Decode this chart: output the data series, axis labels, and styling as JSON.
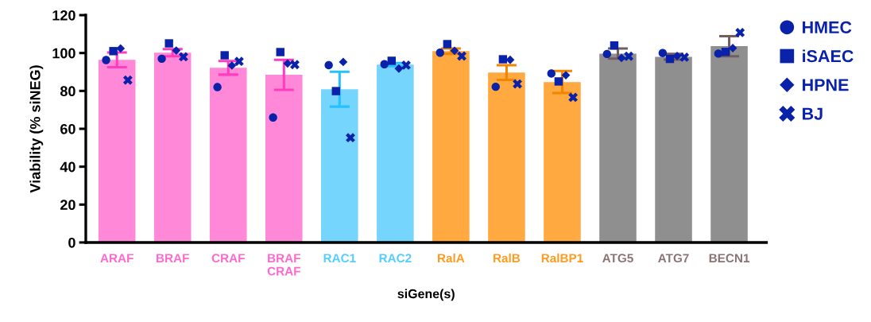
{
  "chart_data": {
    "type": "bar",
    "ylabel": "Viability (% siNEG)",
    "xlabel": "siGene(s)",
    "categories": [
      "ARAF",
      "BRAF",
      "CRAF",
      "BRAF\nCRAF",
      "RAC1",
      "RAC2",
      "RalA",
      "RalB",
      "RalBP1",
      "ATG5",
      "ATG7",
      "BECN1"
    ],
    "ylim": [
      0,
      120
    ],
    "yticks": [
      0,
      20,
      40,
      60,
      80,
      100,
      120
    ],
    "grid": false,
    "legend": "top right",
    "series": [
      {
        "colors": [
          "#ff88d8",
          "#ff88d8",
          "#ff88d8",
          "#ff88d8",
          "#75d5fd",
          "#75d5fd",
          "#ffa940",
          "#ffa940",
          "#ffa940",
          "#8f8f8f",
          "#8f8f8f",
          "#8f8f8f"
        ],
        "values": [
          96.4,
          100.2,
          92.2,
          88.5,
          80.9,
          93.9,
          101.0,
          89.7,
          84.7,
          99.7,
          98.0,
          103.6
        ],
        "errors": [
          3.9,
          1.9,
          3.6,
          7.9,
          9.2,
          0.8,
          1.4,
          3.9,
          5.8,
          2.7,
          1.5,
          5.3
        ]
      },
      {
        "type": "scatter",
        "name": "HMEC",
        "marker": "circle",
        "color": "#0a22aa",
        "values": [
          96.3,
          97.0,
          82.0,
          66.0,
          93.6,
          94.1,
          100.2,
          82.2,
          89.2,
          99.5,
          100.0,
          99.7
        ]
      },
      {
        "type": "scatter",
        "name": "iSAEC",
        "marker": "square",
        "color": "#0a22aa",
        "values": [
          101.0,
          105.1,
          98.8,
          100.5,
          79.9,
          95.9,
          104.7,
          96.7,
          85.0,
          104.0,
          96.9,
          100.6
        ]
      },
      {
        "type": "scatter",
        "name": "HPNE",
        "marker": "diamond",
        "color": "#0a22aa",
        "values": [
          102.4,
          101.3,
          93.4,
          94.5,
          95.3,
          91.8,
          101.2,
          96.4,
          88.3,
          97.4,
          98.4,
          102.6
        ]
      },
      {
        "type": "scatter",
        "name": "BJ",
        "marker": "cross",
        "color": "#0a22aa",
        "values": [
          85.7,
          98.0,
          95.6,
          93.9,
          55.3,
          93.6,
          98.4,
          83.7,
          76.6,
          98.3,
          97.8,
          110.8
        ]
      }
    ]
  }
}
